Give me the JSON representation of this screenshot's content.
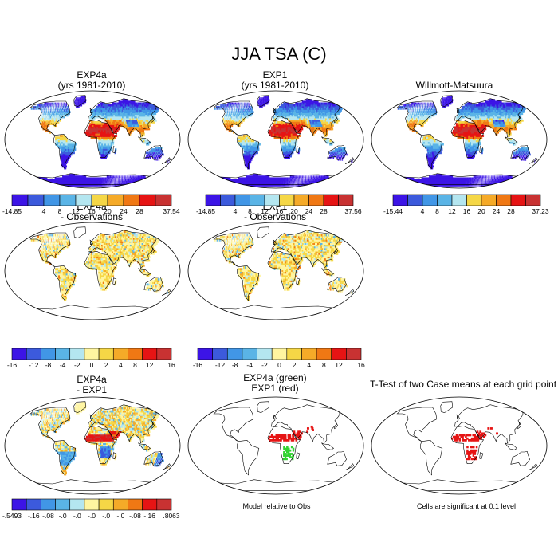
{
  "title": "JJA TSA (C)",
  "palettes": {
    "abs": [
      "#3c14e6",
      "#3c5adc",
      "#4196e6",
      "#5ab4e6",
      "#b4e6f0",
      "#f5d746",
      "#f5aa28",
      "#f07814",
      "#e61414",
      "#c83232"
    ],
    "diff": [
      "#3c14e6",
      "#3c5adc",
      "#4196e6",
      "#5ab4e6",
      "#b4e6f0",
      "#fff5a0",
      "#f5d746",
      "#f5aa28",
      "#f07814",
      "#e61414",
      "#c83232"
    ]
  },
  "panels": [
    {
      "id": "p1",
      "title": "EXP4a\n(yrs 1981-2010)",
      "kind": "abs"
    },
    {
      "id": "p2",
      "title": "EXP1\n(yrs 1981-2010)",
      "kind": "abs"
    },
    {
      "id": "p3",
      "title": "Willmott-Matsuura",
      "kind": "abs"
    },
    {
      "id": "p4",
      "title": "EXP4a\n- Observations",
      "kind": "diff"
    },
    {
      "id": "p5",
      "title": "EXP1\n- Observations",
      "kind": "diff"
    },
    {
      "id": "p7",
      "title": "EXP4a\n- EXP1",
      "kind": "diff2"
    },
    {
      "id": "p8",
      "title": "EXP4a (green)\nEXP1 (red)",
      "kind": "sig2"
    },
    {
      "id": "p9",
      "title": "T-Test of two Case means at each grid point",
      "kind": "sig"
    }
  ],
  "colorbars": [
    {
      "id": "cb1",
      "palette": "abs",
      "labels": [
        "-14.85",
        "4",
        "8",
        "12",
        "16",
        "20",
        "24",
        "28",
        "37.54"
      ]
    },
    {
      "id": "cb2",
      "palette": "abs",
      "labels": [
        "-14.85",
        "4",
        "8",
        "12",
        "16",
        "20",
        "24",
        "28",
        "37.56"
      ]
    },
    {
      "id": "cb3",
      "palette": "abs",
      "labels": [
        "-15.44",
        "4",
        "8",
        "12",
        "16",
        "20",
        "24",
        "28",
        "37.23"
      ]
    },
    {
      "id": "cb4",
      "palette": "diff",
      "labels": [
        "-16",
        "-12",
        "-8",
        "-4",
        "-2",
        "0",
        "2",
        "4",
        "8",
        "12",
        "16"
      ]
    },
    {
      "id": "cb5",
      "palette": "diff",
      "labels": [
        "-16",
        "-12",
        "-8",
        "-4",
        "-2",
        "0",
        "2",
        "4",
        "8",
        "12",
        "16"
      ]
    },
    {
      "id": "cb7",
      "palette": "diff",
      "labels": [
        "-.5493",
        "-.16",
        "-.08",
        "-.0",
        "-.0",
        "-.0",
        "-.0",
        "-.0",
        "-.08",
        "-.16",
        ".8063"
      ]
    }
  ],
  "notes": {
    "model_relative": "Model relative to Obs",
    "significant": "Cells are significant at 0.1 level"
  }
}
